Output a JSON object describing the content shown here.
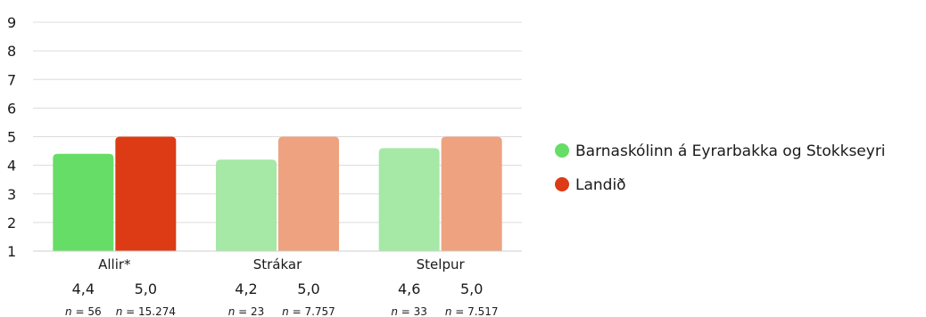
{
  "chart_data": {
    "type": "bar",
    "categories": [
      "Allir*",
      "Strákar",
      "Stelpur"
    ],
    "ylim": [
      1,
      9
    ],
    "yticks": [
      1,
      2,
      3,
      4,
      5,
      6,
      7,
      8,
      9
    ],
    "grid": true,
    "legend_position": "right",
    "series": [
      {
        "name": "Barnaskólinn á Eyrarbakka og Stokkseyri",
        "values": [
          4.4,
          4.2,
          4.6
        ],
        "value_labels": [
          "4,4",
          "4,2",
          "4,6"
        ],
        "n_labels": [
          "= 56",
          "= 23",
          "= 33"
        ],
        "bar_colors": [
          "#66dd66",
          "#a6e8a6",
          "#a6e8a6"
        ],
        "legend_color": "#66dd66"
      },
      {
        "name": "Landið",
        "values": [
          5.0,
          5.0,
          5.0
        ],
        "value_labels": [
          "5,0",
          "5,0",
          "5,0"
        ],
        "n_labels": [
          "= 15.274",
          "= 7.757",
          "= 7.517"
        ],
        "bar_colors": [
          "#dd3b15",
          "#eea27f",
          "#eea27f"
        ],
        "legend_color": "#dd3b15"
      }
    ],
    "n_symbol": "n"
  }
}
